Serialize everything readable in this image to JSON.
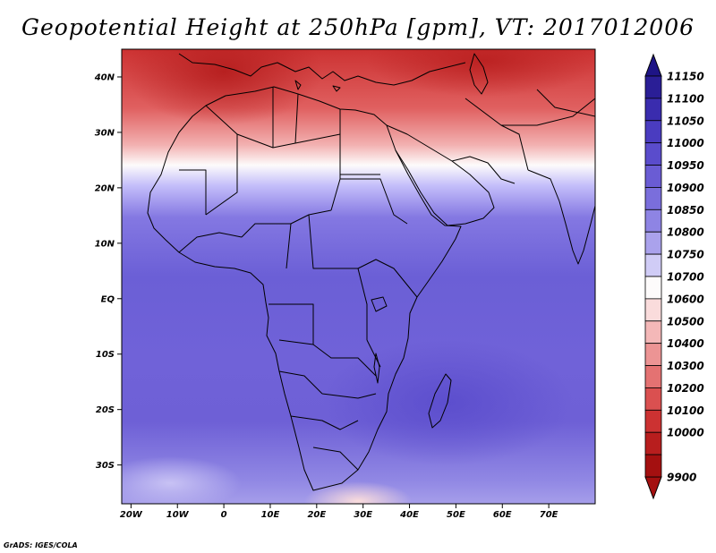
{
  "title": "Geopotential Height at 250hPa [gpm], VT: 2017012006",
  "credit": "GrADS: IGES/COLA",
  "map": {
    "lat_labels": [
      "40N",
      "30N",
      "20N",
      "10N",
      "EQ",
      "10S",
      "20S",
      "30S"
    ],
    "lat_values": [
      40,
      30,
      20,
      10,
      0,
      -10,
      -20,
      -30
    ],
    "lon_labels": [
      "20W",
      "10W",
      "0",
      "10E",
      "20E",
      "30E",
      "40E",
      "50E",
      "60E",
      "70E"
    ],
    "lon_values": [
      -20,
      -10,
      0,
      10,
      20,
      30,
      40,
      50,
      60,
      70
    ],
    "lon_range": [
      -22,
      80
    ],
    "lat_range": [
      -37,
      45
    ]
  },
  "colorbar": {
    "levels": [
      "11150",
      "11100",
      "11050",
      "11000",
      "10950",
      "10900",
      "10850",
      "10800",
      "10750",
      "10700",
      "10600",
      "10500",
      "10400",
      "10300",
      "10200",
      "10100",
      "10000",
      "9900"
    ],
    "colors": [
      "#2a1e96",
      "#3a2cae",
      "#4a3cc0",
      "#5a4ccc",
      "#6a5cd4",
      "#7a6edc",
      "#8e84e4",
      "#aaa2ec",
      "#d0ccf6",
      "#fdfbfb",
      "#fadcdc",
      "#f4b8b8",
      "#ec9494",
      "#e47272",
      "#da5050",
      "#cc3232",
      "#b81e1e",
      "#a41010"
    ]
  }
}
